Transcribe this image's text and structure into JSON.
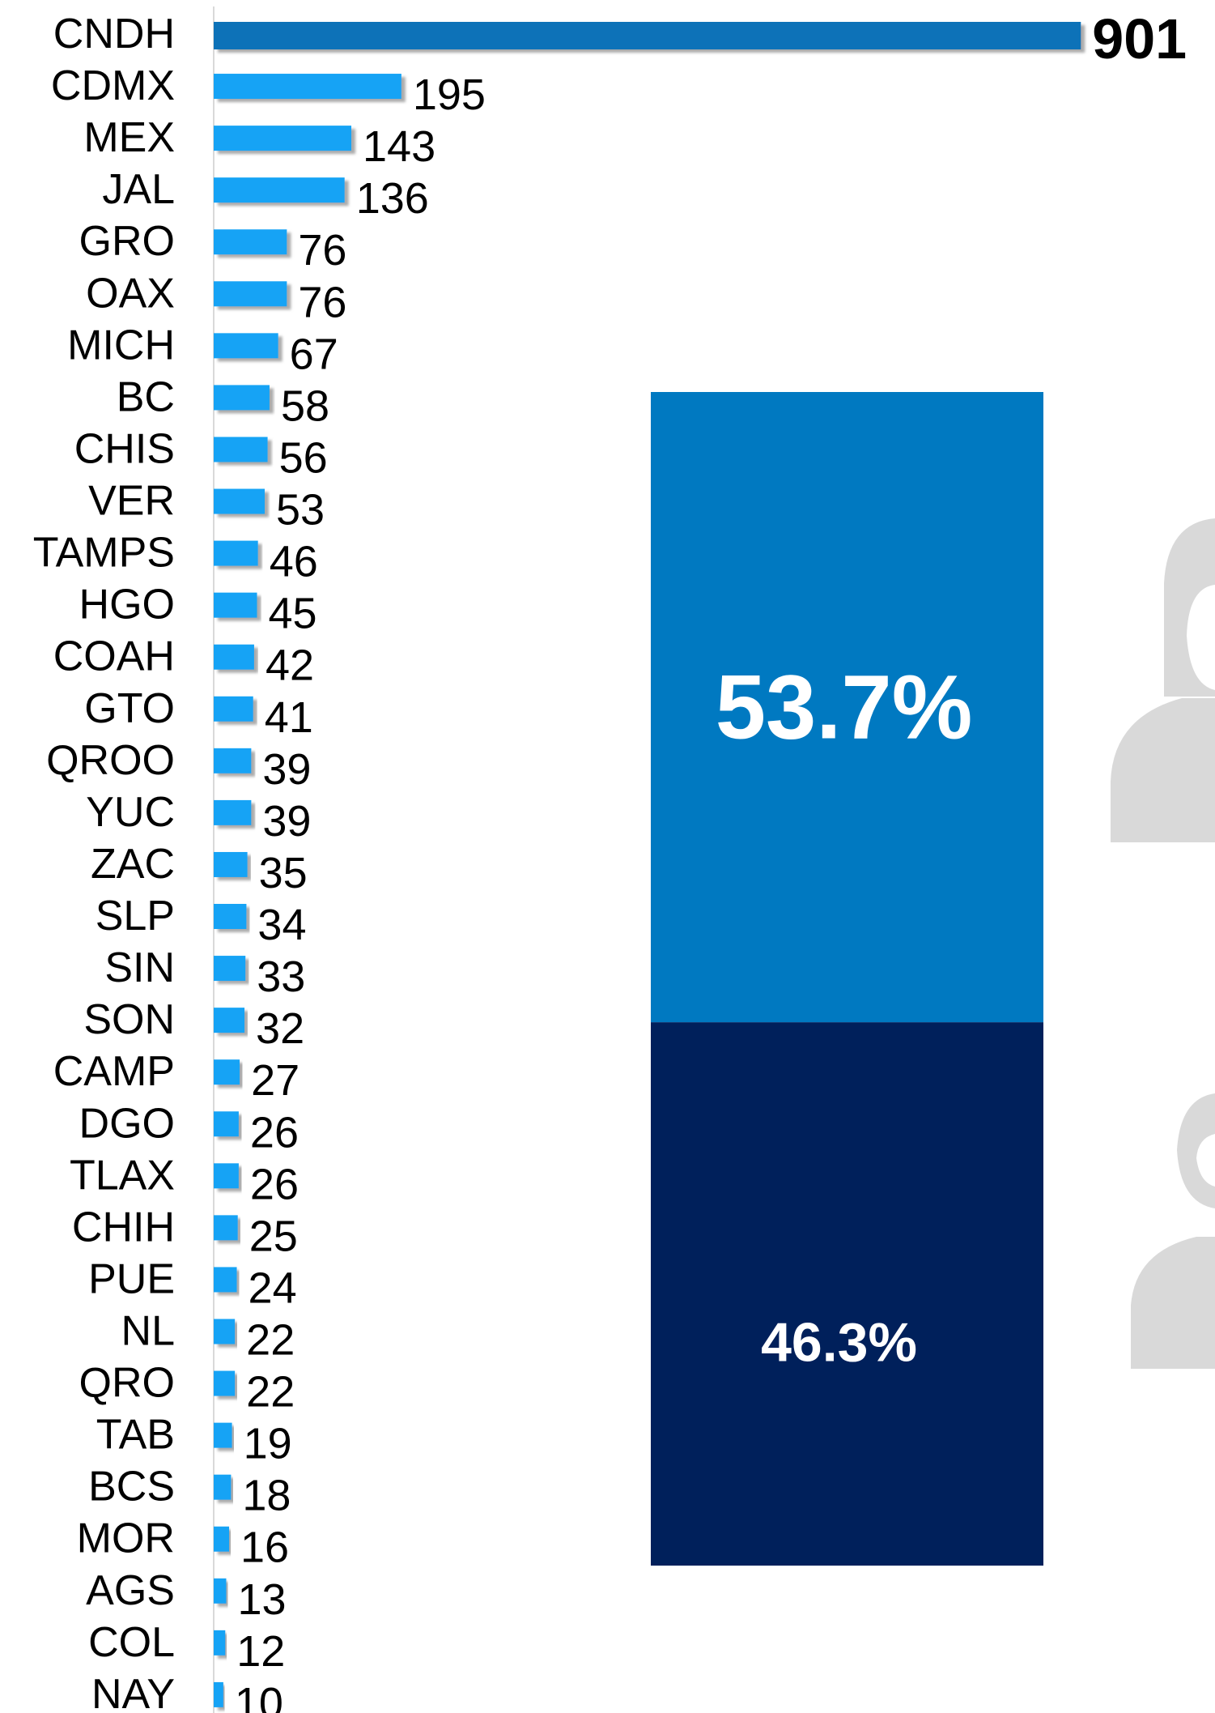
{
  "chart_data": [
    {
      "type": "hbar",
      "categories": [
        "CNDH",
        "CDMX",
        "MEX",
        "JAL",
        "GRO",
        "OAX",
        "MICH",
        "BC",
        "CHIS",
        "VER",
        "TAMPS",
        "HGO",
        "COAH",
        "GTO",
        "QROO",
        "YUC",
        "ZAC",
        "SLP",
        "SIN",
        "SON",
        "CAMP",
        "DGO",
        "TLAX",
        "CHIH",
        "PUE",
        "NL",
        "QRO",
        "TAB",
        "BCS",
        "MOR",
        "AGS",
        "COL",
        "NAY"
      ],
      "values": [
        901,
        195,
        143,
        136,
        76,
        76,
        67,
        58,
        56,
        53,
        46,
        45,
        42,
        41,
        39,
        39,
        35,
        34,
        33,
        32,
        27,
        26,
        26,
        25,
        24,
        22,
        22,
        19,
        18,
        16,
        13,
        12,
        10
      ],
      "colors": [
        "#0a72b8",
        "#12a3f5",
        "#12a3f5",
        "#12a3f5",
        "#12a3f5",
        "#12a3f5",
        "#12a3f5",
        "#12a3f5",
        "#12a3f5",
        "#12a3f5",
        "#12a3f5",
        "#12a3f5",
        "#12a3f5",
        "#12a3f5",
        "#12a3f5",
        "#12a3f5",
        "#12a3f5",
        "#12a3f5",
        "#12a3f5",
        "#12a3f5",
        "#12a3f5",
        "#12a3f5",
        "#12a3f5",
        "#12a3f5",
        "#12a3f5",
        "#12a3f5",
        "#12a3f5",
        "#12a3f5",
        "#12a3f5",
        "#12a3f5",
        "#12a3f5",
        "#12a3f5",
        "#12a3f5"
      ],
      "xlim": [
        0,
        1000
      ]
    },
    {
      "type": "stacked_bar",
      "series": [
        {
          "color": "#00205b",
          "values": [
            46.3
          ],
          "value_labels": [
            "46.3%"
          ]
        },
        {
          "color": "#0079c1",
          "values": [
            53.7
          ],
          "value_labels": [
            "53.7%"
          ]
        }
      ],
      "ylim": [
        0,
        100
      ]
    }
  ]
}
